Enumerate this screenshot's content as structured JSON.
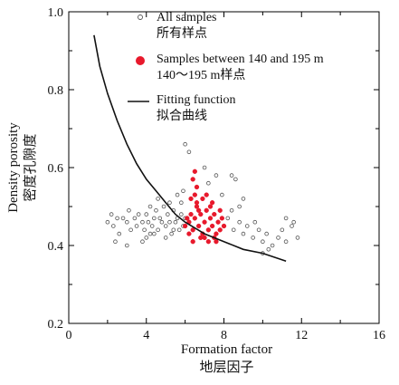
{
  "chart_data": {
    "type": "scatter",
    "xlabel": "Formation factor",
    "xlabel_cn": "地层因子",
    "ylabel": "Density porosity",
    "ylabel_cn": "密度孔隙度",
    "xlim": [
      0,
      16
    ],
    "ylim": [
      0.2,
      1.0
    ],
    "x_ticks": [
      "0",
      "4",
      "8",
      "12",
      "16"
    ],
    "y_ticks": [
      "0.2",
      "0.4",
      "0.6",
      "0.8",
      "1.0"
    ],
    "grid": false,
    "legend": {
      "placement": "top-right",
      "items": [
        {
          "label_en": "All samples",
          "label_cn": "所有样点",
          "style": "open-circle"
        },
        {
          "label_en": "Samples between 140 and 195 m",
          "label_cn": "140～195 m样点",
          "style": "filled-red-circle"
        },
        {
          "label_en": "Fitting function",
          "label_cn": "拟合曲线",
          "style": "line"
        }
      ]
    },
    "colors": {
      "all_samples": "#555555",
      "subset_samples": "#e8192c",
      "fit_line": "#111111"
    },
    "series": [
      {
        "name": "All samples",
        "points": [
          [
            2.0,
            0.46
          ],
          [
            2.2,
            0.48
          ],
          [
            2.3,
            0.45
          ],
          [
            2.5,
            0.47
          ],
          [
            2.6,
            0.43
          ],
          [
            2.8,
            0.47
          ],
          [
            3.0,
            0.46
          ],
          [
            3.1,
            0.49
          ],
          [
            3.2,
            0.44
          ],
          [
            3.4,
            0.47
          ],
          [
            3.5,
            0.45
          ],
          [
            3.6,
            0.48
          ],
          [
            3.8,
            0.46
          ],
          [
            3.9,
            0.44
          ],
          [
            4.0,
            0.48
          ],
          [
            4.1,
            0.46
          ],
          [
            4.2,
            0.5
          ],
          [
            4.3,
            0.45
          ],
          [
            4.4,
            0.47
          ],
          [
            4.5,
            0.49
          ],
          [
            4.6,
            0.44
          ],
          [
            4.7,
            0.47
          ],
          [
            4.8,
            0.46
          ],
          [
            4.9,
            0.5
          ],
          [
            5.0,
            0.45
          ],
          [
            5.1,
            0.48
          ],
          [
            5.2,
            0.46
          ],
          [
            5.3,
            0.43
          ],
          [
            5.4,
            0.49
          ],
          [
            5.5,
            0.46
          ],
          [
            5.6,
            0.47
          ],
          [
            5.7,
            0.44
          ],
          [
            5.8,
            0.48
          ],
          [
            5.9,
            0.45
          ],
          [
            6.0,
            0.47
          ],
          [
            4.0,
            0.42
          ],
          [
            4.4,
            0.43
          ],
          [
            3.8,
            0.41
          ],
          [
            5.0,
            0.42
          ],
          [
            5.6,
            0.53
          ],
          [
            5.9,
            0.54
          ],
          [
            6.0,
            0.66
          ],
          [
            6.2,
            0.64
          ],
          [
            5.2,
            0.51
          ],
          [
            4.6,
            0.52
          ],
          [
            2.4,
            0.41
          ],
          [
            3.0,
            0.4
          ],
          [
            4.2,
            0.43
          ],
          [
            5.4,
            0.44
          ],
          [
            5.8,
            0.51
          ],
          [
            8.2,
            0.47
          ],
          [
            8.5,
            0.44
          ],
          [
            8.8,
            0.46
          ],
          [
            9.0,
            0.43
          ],
          [
            9.2,
            0.45
          ],
          [
            9.5,
            0.42
          ],
          [
            9.8,
            0.44
          ],
          [
            10.0,
            0.41
          ],
          [
            10.2,
            0.43
          ],
          [
            10.5,
            0.4
          ],
          [
            10.8,
            0.42
          ],
          [
            11.0,
            0.44
          ],
          [
            11.2,
            0.41
          ],
          [
            11.5,
            0.45
          ],
          [
            11.8,
            0.42
          ],
          [
            8.8,
            0.5
          ],
          [
            9.0,
            0.52
          ],
          [
            8.4,
            0.49
          ],
          [
            10.0,
            0.38
          ],
          [
            10.3,
            0.39
          ],
          [
            11.2,
            0.47
          ],
          [
            11.6,
            0.46
          ],
          [
            9.6,
            0.46
          ],
          [
            8.0,
            0.45
          ],
          [
            7.9,
            0.53
          ],
          [
            7.6,
            0.58
          ],
          [
            8.4,
            0.58
          ],
          [
            8.6,
            0.57
          ],
          [
            7.2,
            0.56
          ],
          [
            7.0,
            0.6
          ]
        ]
      },
      {
        "name": "Samples between 140 and 195 m",
        "points": [
          [
            6.2,
            0.46
          ],
          [
            6.3,
            0.48
          ],
          [
            6.4,
            0.44
          ],
          [
            6.5,
            0.47
          ],
          [
            6.6,
            0.5
          ],
          [
            6.7,
            0.45
          ],
          [
            6.8,
            0.48
          ],
          [
            6.9,
            0.43
          ],
          [
            7.0,
            0.46
          ],
          [
            7.1,
            0.49
          ],
          [
            7.2,
            0.44
          ],
          [
            7.3,
            0.47
          ],
          [
            7.4,
            0.45
          ],
          [
            7.5,
            0.48
          ],
          [
            7.6,
            0.43
          ],
          [
            7.7,
            0.46
          ],
          [
            7.8,
            0.44
          ],
          [
            7.9,
            0.47
          ],
          [
            8.0,
            0.45
          ],
          [
            6.3,
            0.52
          ],
          [
            6.5,
            0.53
          ],
          [
            6.6,
            0.55
          ],
          [
            6.4,
            0.57
          ],
          [
            6.5,
            0.59
          ],
          [
            6.6,
            0.51
          ],
          [
            6.9,
            0.52
          ],
          [
            7.1,
            0.53
          ],
          [
            7.3,
            0.5
          ],
          [
            7.0,
            0.42
          ],
          [
            7.2,
            0.41
          ],
          [
            6.8,
            0.42
          ],
          [
            7.6,
            0.41
          ],
          [
            6.2,
            0.43
          ],
          [
            6.0,
            0.45
          ],
          [
            6.1,
            0.47
          ],
          [
            7.8,
            0.49
          ],
          [
            7.4,
            0.51
          ],
          [
            6.7,
            0.49
          ],
          [
            6.4,
            0.41
          ],
          [
            7.5,
            0.42
          ]
        ]
      }
    ],
    "fit_function": {
      "name": "Fitting function",
      "points": [
        [
          1.3,
          0.94
        ],
        [
          1.6,
          0.86
        ],
        [
          2.0,
          0.79
        ],
        [
          2.5,
          0.72
        ],
        [
          3.0,
          0.66
        ],
        [
          3.5,
          0.61
        ],
        [
          4.0,
          0.57
        ],
        [
          4.5,
          0.54
        ],
        [
          5.0,
          0.51
        ],
        [
          5.5,
          0.48
        ],
        [
          6.0,
          0.46
        ],
        [
          7.0,
          0.43
        ],
        [
          8.0,
          0.41
        ],
        [
          9.0,
          0.39
        ],
        [
          10.0,
          0.38
        ],
        [
          11.2,
          0.36
        ]
      ]
    }
  }
}
